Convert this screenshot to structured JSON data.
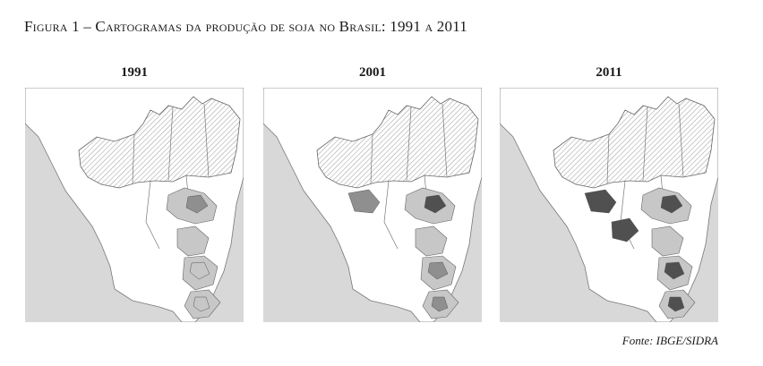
{
  "figure": {
    "caption": "Figura 1 – Cartogramas da produção de soja no Brasil: 1991 a 2011",
    "source": "Fonte: IBGE/SIDRA"
  },
  "maps": [
    {
      "year": "1991",
      "intensity": 1
    },
    {
      "year": "2001",
      "intensity": 2
    },
    {
      "year": "2011",
      "intensity": 3
    }
  ],
  "colors": {
    "ocean": "#d8d8d8",
    "land": "#ffffff",
    "hatch": "#9a9a9a",
    "region_light": "#c7c7c7",
    "region_mid": "#8f8f8f",
    "region_dark": "#505050"
  }
}
